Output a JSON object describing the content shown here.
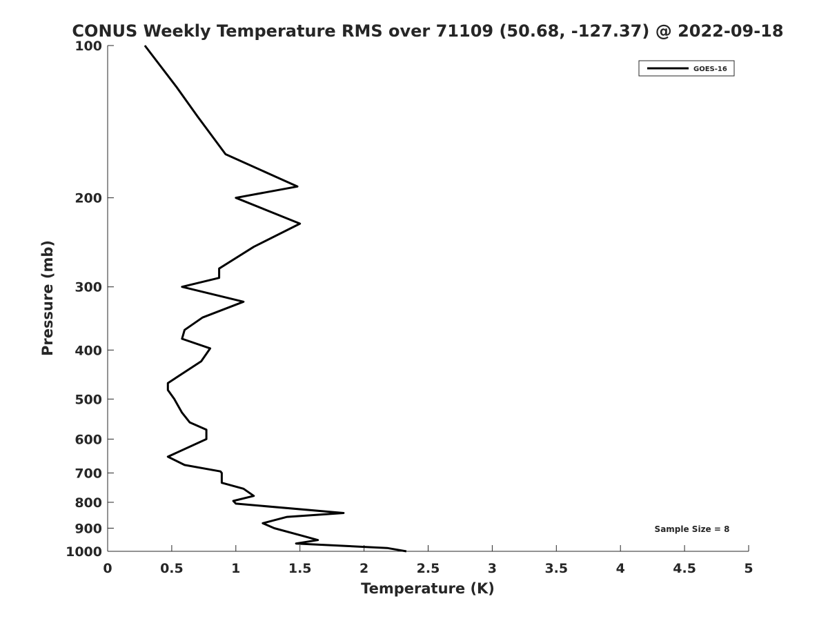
{
  "chart_data": {
    "type": "line",
    "title": "CONUS Weekly Temperature RMS over 71109 (50.68, -127.37) @ 2022-09-18",
    "xlabel": "Temperature (K)",
    "ylabel": "Pressure (mb)",
    "xlim": [
      0,
      5
    ],
    "ylim": [
      100,
      1000
    ],
    "y_scale": "log",
    "y_reversed": true,
    "grid": false,
    "legend_position": "top-right",
    "x_ticks": [
      0,
      0.5,
      1,
      1.5,
      2,
      2.5,
      3,
      3.5,
      4,
      4.5,
      5
    ],
    "x_tick_labels": [
      "0",
      "0.5",
      "1",
      "1.5",
      "2",
      "2.5",
      "3",
      "3.5",
      "4",
      "4.5",
      "5"
    ],
    "y_ticks": [
      100,
      200,
      300,
      400,
      500,
      600,
      700,
      800,
      900,
      1000
    ],
    "y_tick_labels": [
      "100",
      "200",
      "300",
      "400",
      "500",
      "600",
      "700",
      "800",
      "900",
      "1000"
    ],
    "annotation": "Sample Size = 8",
    "series": [
      {
        "name": "GOES-16",
        "color": "#000000",
        "x": [
          0.29,
          0.54,
          0.7,
          0.92,
          1.48,
          1.0,
          1.5,
          1.14,
          0.87,
          0.87,
          0.58,
          1.06,
          0.74,
          0.6,
          0.58,
          0.8,
          0.73,
          0.47,
          0.47,
          0.52,
          0.58,
          0.64,
          0.77,
          0.77,
          0.47,
          0.6,
          0.88,
          0.89,
          0.89,
          1.06,
          1.14,
          0.98,
          1.0,
          1.84,
          1.4,
          1.21,
          1.3,
          1.52,
          1.64,
          1.47,
          2.18,
          2.33
        ],
        "y": [
          100,
          121,
          138,
          164,
          190,
          200,
          225,
          250,
          276,
          288,
          300,
          321,
          345,
          365,
          380,
          397,
          421,
          465,
          480,
          500,
          532,
          556,
          575,
          600,
          650,
          675,
          695,
          700,
          732,
          752,
          777,
          795,
          805,
          840,
          855,
          880,
          900,
          932,
          950,
          965,
          985,
          1000
        ]
      }
    ]
  }
}
